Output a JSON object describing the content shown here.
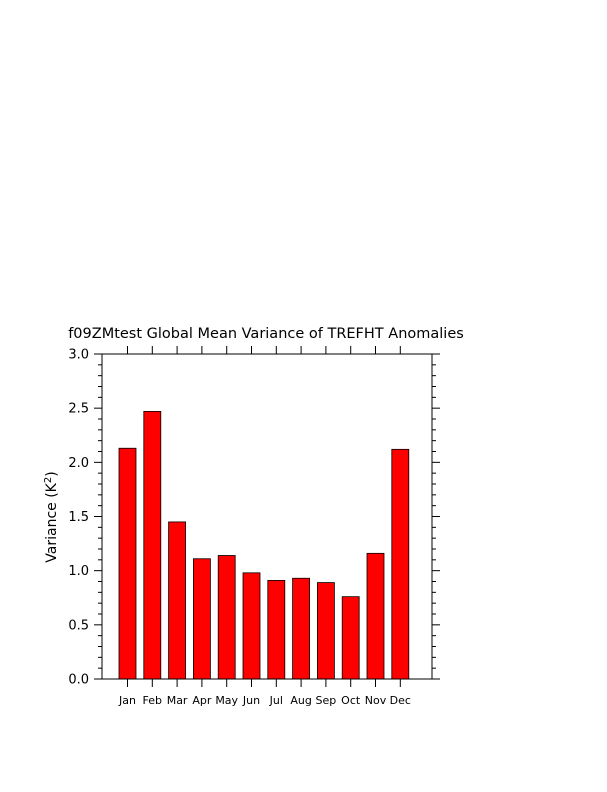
{
  "chart_data": {
    "type": "bar",
    "title": "f09ZMtest Global Mean Variance of TREFHT Anomalies",
    "ylabel": "Variance (K",
    "ylabel_sup": "2",
    "ylabel_close": ")",
    "xlabel": "",
    "categories": [
      "Jan",
      "Feb",
      "Mar",
      "Apr",
      "May",
      "Jun",
      "Jul",
      "Aug",
      "Sep",
      "Oct",
      "Nov",
      "Dec"
    ],
    "values": [
      2.13,
      2.47,
      1.45,
      1.11,
      1.14,
      0.98,
      0.91,
      0.93,
      0.89,
      0.76,
      1.16,
      2.12
    ],
    "ylim": [
      0,
      3
    ],
    "yticks": [
      "0.0",
      "0.5",
      "1.0",
      "1.5",
      "2.0",
      "2.5",
      "3.0"
    ],
    "ytick_values": [
      0,
      0.5,
      1.0,
      1.5,
      2.0,
      2.5,
      3.0
    ],
    "bar_color": "#ff0000",
    "edge_color": "#000000",
    "grid": false
  }
}
